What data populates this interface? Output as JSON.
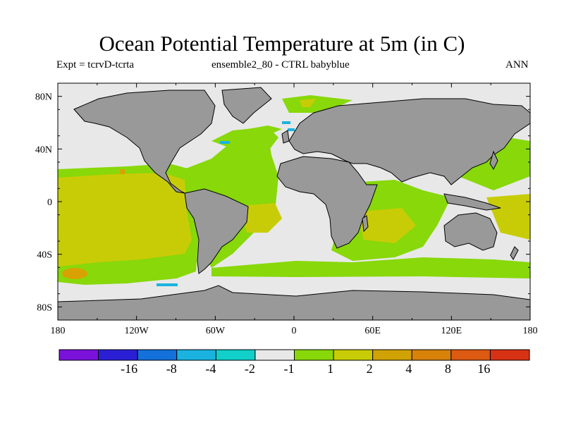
{
  "chart_data": {
    "type": "heatmap",
    "title": "Ocean Potential Temperature at 5m (in C)",
    "subtitle_left": "Expt = tcrvD-tcrta",
    "subtitle_center": "ensemble2_80 - CTRL babyblue",
    "subtitle_right": "ANN",
    "variable": "Ocean Potential Temperature at 5m difference",
    "units": "C",
    "season": "ANN",
    "x_axis": {
      "range": [
        -180,
        180
      ],
      "ticks": [
        -180,
        -120,
        -60,
        0,
        60,
        120,
        180
      ],
      "tick_labels": [
        "180",
        "120W",
        "60W",
        "0",
        "60E",
        "120E",
        "180"
      ]
    },
    "y_axis": {
      "range": [
        -90,
        90
      ],
      "ticks": [
        80,
        40,
        0,
        -40,
        -80
      ],
      "tick_labels": [
        "80N",
        "40N",
        "0",
        "40S",
        "80S"
      ]
    },
    "colorbar": {
      "colors": [
        "#7a12dc",
        "#2b1fd6",
        "#1470da",
        "#1ab3df",
        "#12cfc9",
        "#e8e8e8",
        "#88d80a",
        "#c8cc06",
        "#d0a204",
        "#d8820a",
        "#dc5a12",
        "#d83214"
      ],
      "labels": [
        "-16",
        "-8",
        "-4",
        "-2",
        "-1",
        "1",
        "2",
        "4",
        "8",
        "16"
      ],
      "labeled_boundaries": [
        2,
        3,
        4,
        5,
        6,
        7,
        8,
        9,
        10,
        11
      ]
    },
    "fields": {
      "land": "#999999",
      "ocean_default": "#e8e8e8",
      "warm_1_2": "#88d80a",
      "warm_2_4": "#c8cc06",
      "warm_4_8": "#d8820a",
      "cool_m1_m2": "#1ab3df"
    }
  }
}
